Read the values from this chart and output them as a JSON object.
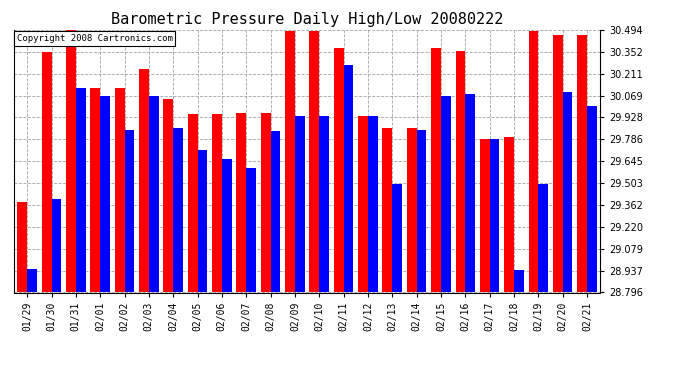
{
  "title": "Barometric Pressure Daily High/Low 20080222",
  "copyright": "Copyright 2008 Cartronics.com",
  "dates": [
    "01/29",
    "01/30",
    "01/31",
    "02/01",
    "02/02",
    "02/03",
    "02/04",
    "02/05",
    "02/06",
    "02/07",
    "02/08",
    "02/09",
    "02/10",
    "02/11",
    "02/12",
    "02/13",
    "02/14",
    "02/15",
    "02/16",
    "02/17",
    "02/18",
    "02/19",
    "02/20",
    "02/21"
  ],
  "highs": [
    29.38,
    30.35,
    30.5,
    30.12,
    30.12,
    30.24,
    30.05,
    29.95,
    29.95,
    29.96,
    29.96,
    30.49,
    30.49,
    30.38,
    29.94,
    29.86,
    29.86,
    30.38,
    30.36,
    29.79,
    29.8,
    30.49,
    30.46,
    30.46
  ],
  "lows": [
    28.95,
    29.4,
    30.12,
    30.07,
    29.85,
    30.07,
    29.86,
    29.72,
    29.66,
    29.6,
    29.84,
    29.94,
    29.94,
    30.27,
    29.94,
    29.5,
    29.85,
    30.07,
    30.08,
    29.79,
    28.94,
    29.5,
    30.09,
    30.0
  ],
  "ymin": 28.796,
  "ymax": 30.494,
  "yticks": [
    28.796,
    28.937,
    29.079,
    29.22,
    29.362,
    29.503,
    29.645,
    29.786,
    29.928,
    30.069,
    30.211,
    30.352,
    30.494
  ],
  "high_color": "#ff0000",
  "low_color": "#0000ff",
  "bg_color": "#ffffff",
  "grid_color": "#999999",
  "title_fontsize": 11,
  "tick_fontsize": 7,
  "bar_width": 0.4
}
